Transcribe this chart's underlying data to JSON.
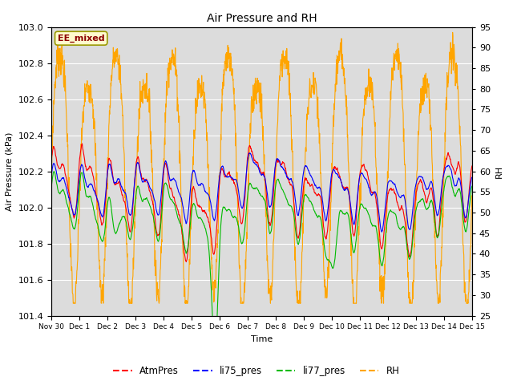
{
  "title": "Air Pressure and RH",
  "xlabel": "Time",
  "ylabel_left": "Air Pressure (kPa)",
  "ylabel_right": "RH",
  "ylim_left": [
    101.4,
    103.0
  ],
  "ylim_right": [
    25,
    95
  ],
  "yticks_left": [
    101.4,
    101.6,
    101.8,
    102.0,
    102.2,
    102.4,
    102.6,
    102.8,
    103.0
  ],
  "yticks_right": [
    25,
    30,
    35,
    40,
    45,
    50,
    55,
    60,
    65,
    70,
    75,
    80,
    85,
    90,
    95
  ],
  "xtick_labels": [
    "Nov 30",
    "Dec 1",
    "Dec 2",
    "Dec 3",
    "Dec 4",
    "Dec 5",
    "Dec 6",
    "Dec 7",
    "Dec 8",
    "Dec 9",
    "Dec 10",
    "Dec 11",
    "Dec 12",
    "Dec 13",
    "Dec 14",
    "Dec 15"
  ],
  "annotation_text": "EE_mixed",
  "annotation_color": "#8B0000",
  "annotation_bg": "#FFFACD",
  "annotation_border": "#999900",
  "plot_bg_color": "#DCDCDC",
  "colors": {
    "AtmPres": "#FF0000",
    "li75_pres": "#0000FF",
    "li77_pres": "#00BB00",
    "RH": "#FFA500"
  },
  "legend_labels": [
    "AtmPres",
    "li75_pres",
    "li77_pres",
    "RH"
  ],
  "n_points": 1500,
  "figsize": [
    6.4,
    4.8
  ],
  "dpi": 100
}
